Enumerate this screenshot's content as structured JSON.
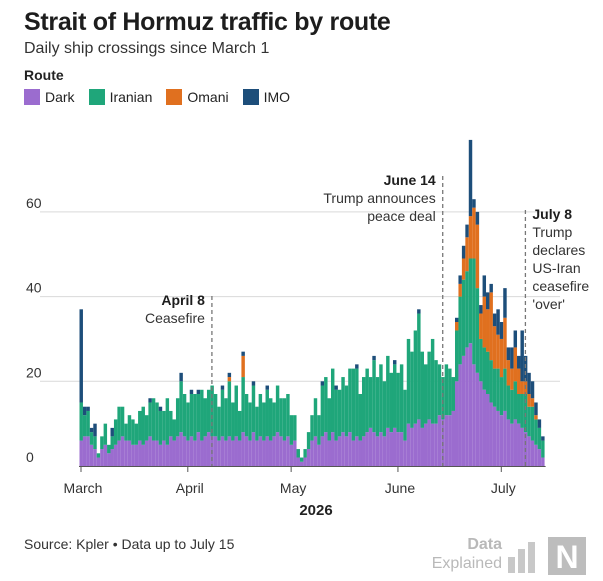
{
  "header": {
    "title": "Strait of Hormuz traffic by route",
    "subtitle": "Daily ship crossings since March 1"
  },
  "legend": {
    "title": "Route",
    "items": [
      {
        "label": "Dark",
        "color": "#9b6ccf"
      },
      {
        "label": "Iranian",
        "color": "#1fa67a"
      },
      {
        "label": "Omani",
        "color": "#e0701f"
      },
      {
        "label": "IMO",
        "color": "#1d4e7a"
      }
    ]
  },
  "footer": {
    "source": "Source: Kpler • Data up to July 15",
    "logo_line1": "Data",
    "logo_line2": "Explained",
    "logo_mark": "N"
  },
  "chart_data": {
    "type": "bar",
    "stacked": true,
    "title": "Strait of Hormuz traffic by route",
    "subtitle": "Daily ship crossings since March 1",
    "xlabel": "2026",
    "ylabel": "",
    "x_start": "2026-03-01",
    "x_end": "2026-07-15",
    "x_ticks": [
      "March",
      "April",
      "May",
      "June",
      "July"
    ],
    "y_ticks": [
      0,
      20,
      40,
      60
    ],
    "ylim": [
      0,
      78
    ],
    "grid": true,
    "legend_position": "top-left",
    "series": [
      {
        "name": "Dark",
        "color": "#9b6ccf",
        "values": [
          6,
          7,
          7,
          5,
          4,
          2,
          4,
          5,
          3,
          4,
          5,
          6,
          7,
          6,
          6,
          5,
          5,
          6,
          5,
          6,
          7,
          6,
          6,
          5,
          6,
          5,
          7,
          6,
          7,
          8,
          7,
          6,
          7,
          6,
          8,
          6,
          7,
          8,
          7,
          7,
          6,
          7,
          6,
          7,
          6,
          7,
          6,
          8,
          7,
          6,
          8,
          6,
          7,
          6,
          7,
          6,
          7,
          8,
          7,
          6,
          7,
          5,
          6,
          2,
          1,
          2,
          4,
          6,
          7,
          5,
          7,
          8,
          6,
          8,
          6,
          7,
          8,
          7,
          8,
          6,
          7,
          6,
          7,
          8,
          9,
          8,
          7,
          8,
          7,
          9,
          8,
          9,
          8,
          8,
          6,
          10,
          9,
          10,
          11,
          9,
          10,
          11,
          10,
          10,
          12,
          11,
          12,
          12,
          13,
          20,
          24,
          26,
          28,
          29,
          24,
          22,
          20,
          18,
          17,
          15,
          14,
          13,
          12,
          13,
          11,
          10,
          11,
          10,
          9,
          8,
          7,
          6,
          5,
          4,
          2
        ]
      },
      {
        "name": "Iranian",
        "color": "#1fa67a",
        "values": [
          9,
          5,
          6,
          3,
          3,
          1,
          3,
          5,
          2,
          3,
          6,
          8,
          7,
          4,
          6,
          6,
          5,
          7,
          9,
          6,
          8,
          10,
          9,
          8,
          7,
          11,
          6,
          5,
          9,
          12,
          10,
          9,
          10,
          11,
          9,
          12,
          9,
          10,
          12,
          10,
          8,
          11,
          10,
          13,
          9,
          12,
          7,
          13,
          10,
          9,
          11,
          8,
          10,
          9,
          11,
          10,
          8,
          11,
          9,
          10,
          10,
          7,
          6,
          2,
          1,
          2,
          4,
          6,
          9,
          7,
          12,
          13,
          10,
          15,
          12,
          11,
          13,
          12,
          15,
          17,
          16,
          11,
          14,
          15,
          12,
          17,
          14,
          16,
          13,
          17,
          14,
          15,
          14,
          16,
          12,
          20,
          18,
          22,
          25,
          18,
          14,
          16,
          20,
          15,
          12,
          10,
          12,
          11,
          8,
          12,
          16,
          18,
          18,
          20,
          25,
          20,
          10,
          10,
          10,
          10,
          9,
          10,
          9,
          10,
          8,
          8,
          9,
          7,
          8,
          9,
          7,
          8,
          6,
          5,
          4
        ]
      },
      {
        "name": "Omani",
        "color": "#e0701f",
        "values": [
          0,
          0,
          0,
          0,
          0,
          0,
          0,
          0,
          0,
          0,
          0,
          0,
          0,
          0,
          0,
          0,
          0,
          0,
          0,
          0,
          0,
          0,
          0,
          0,
          0,
          0,
          0,
          0,
          0,
          0,
          0,
          0,
          0,
          0,
          0,
          0,
          0,
          0,
          0,
          0,
          0,
          0,
          0,
          1,
          0,
          0,
          0,
          5,
          0,
          0,
          0,
          0,
          0,
          0,
          0,
          0,
          0,
          0,
          0,
          0,
          0,
          0,
          0,
          0,
          0,
          0,
          0,
          0,
          0,
          0,
          0,
          0,
          0,
          0,
          0,
          0,
          0,
          0,
          0,
          0,
          0,
          0,
          0,
          0,
          0,
          0,
          0,
          0,
          0,
          0,
          0,
          0,
          0,
          0,
          0,
          0,
          0,
          0,
          0,
          0,
          0,
          0,
          0,
          0,
          0,
          0,
          0,
          0,
          0,
          2,
          3,
          5,
          8,
          10,
          12,
          15,
          6,
          12,
          10,
          16,
          10,
          8,
          9,
          12,
          6,
          5,
          8,
          6,
          3,
          3,
          3,
          2,
          1,
          0,
          0
        ]
      },
      {
        "name": "IMO",
        "color": "#1d4e7a",
        "values": [
          22,
          2,
          1,
          1,
          3,
          0,
          0,
          0,
          0,
          2,
          0,
          0,
          0,
          0,
          0,
          0,
          0,
          0,
          0,
          0,
          1,
          0,
          0,
          1,
          0,
          0,
          0,
          0,
          0,
          2,
          0,
          0,
          1,
          0,
          1,
          0,
          0,
          0,
          0,
          0,
          0,
          1,
          0,
          1,
          0,
          0,
          0,
          1,
          0,
          0,
          1,
          0,
          0,
          0,
          1,
          0,
          0,
          0,
          0,
          0,
          0,
          0,
          0,
          0,
          0,
          0,
          0,
          0,
          0,
          0,
          1,
          0,
          0,
          0,
          1,
          0,
          0,
          0,
          0,
          0,
          1,
          0,
          0,
          0,
          0,
          1,
          0,
          0,
          0,
          0,
          0,
          1,
          0,
          0,
          0,
          0,
          0,
          0,
          1,
          0,
          0,
          0,
          0,
          0,
          0,
          0,
          0,
          0,
          0,
          1,
          2,
          3,
          3,
          18,
          2,
          3,
          2,
          5,
          4,
          2,
          3,
          6,
          4,
          7,
          3,
          5,
          4,
          3,
          12,
          6,
          5,
          4,
          3,
          2,
          1
        ]
      }
    ],
    "annotations": [
      {
        "date": "2026-04-08",
        "label_bold": "April 8",
        "lines": [
          "Ceasefire"
        ],
        "align": "end"
      },
      {
        "date": "2026-06-14",
        "label_bold": "June 14",
        "lines": [
          "Trump announces",
          "peace deal"
        ],
        "align": "end"
      },
      {
        "date": "2026-07-08",
        "label_bold": "July 8",
        "lines": [
          "Trump",
          "declares",
          "US-Iran",
          "ceasefire",
          "'over'"
        ],
        "align": "start"
      }
    ]
  }
}
